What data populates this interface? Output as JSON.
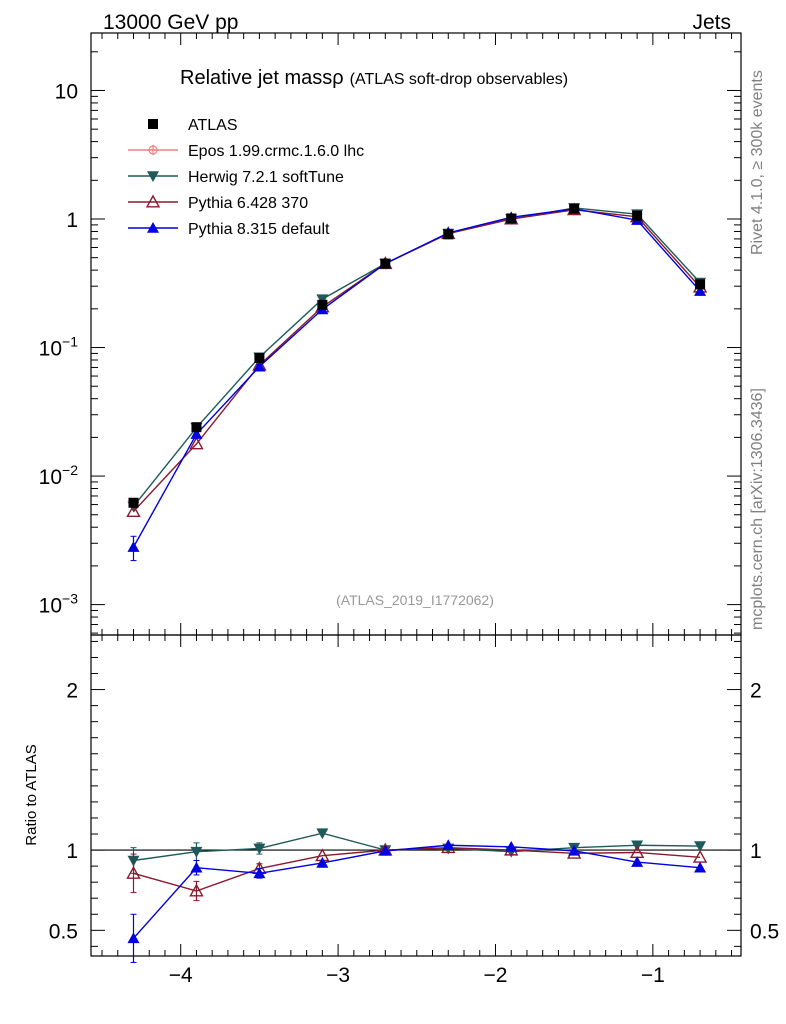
{
  "header": {
    "energy": "13000 GeV pp",
    "category": "Jets"
  },
  "side_labels": {
    "rivet": "Rivet 4.1.0, ≥ 300k events",
    "mcplots": "mcplots.cern.ch [arXiv:1306.3436]"
  },
  "chart_data": {
    "type": "line",
    "title": "Relative jet massρ",
    "subtitle": "(ATLAS soft-drop observables)",
    "analysis_id": "(ATLAS_2019_I1772062)",
    "x": [
      -4.3,
      -3.9,
      -3.5,
      -3.1,
      -2.7,
      -2.3,
      -1.9,
      -1.5,
      -1.1,
      -0.7
    ],
    "xlim": [
      -4.57,
      -0.44
    ],
    "xticks": [
      -4,
      -3,
      -2,
      -1
    ],
    "xtick_labels": [
      "−4",
      "−3",
      "−2",
      "−1"
    ],
    "main": {
      "yscale": "log",
      "ylim": [
        0.00058,
        28
      ],
      "yticks": [
        {
          "value": 0.001,
          "base": "10",
          "exp": "−3"
        },
        {
          "value": 0.01,
          "base": "10",
          "exp": "−2"
        },
        {
          "value": 0.1,
          "base": "10",
          "exp": "−1"
        },
        {
          "value": 1,
          "base": "1",
          "exp": ""
        },
        {
          "value": 10,
          "base": "10",
          "exp": ""
        }
      ]
    },
    "ratio": {
      "ylabel": "Ratio to ATLAS",
      "ylim": [
        0.34,
        2.34
      ],
      "yticks": [
        0.5,
        1,
        2
      ],
      "ytick_labels": [
        "0.5",
        "1",
        "2"
      ]
    },
    "reference": {
      "name": "ATLAS",
      "values": [
        0.0062,
        0.024,
        0.083,
        0.215,
        0.45,
        0.76,
        1.01,
        1.2,
        1.06,
        0.31
      ],
      "errors": [
        0.0004,
        0.0012,
        0.004,
        0.007,
        0.012,
        0.015,
        0.02,
        0.022,
        0.02,
        0.01
      ]
    },
    "series": [
      {
        "name": "Epos 1.99.crmc.1.6.0 lhc",
        "color": "#f08080",
        "marker": "cross",
        "values": null,
        "ratio": null,
        "ratio_err": null
      },
      {
        "name": "Herwig 7.2.1 softTune",
        "color": "#1e5a5a",
        "marker": "triangle-down",
        "values": [
          0.0058,
          0.0238,
          0.084,
          0.238,
          0.45,
          0.77,
          1.0,
          1.22,
          1.09,
          0.32
        ],
        "ratio": [
          0.935,
          0.99,
          1.01,
          1.105,
          1.0,
          1.01,
          0.99,
          1.015,
          1.03,
          1.025
        ],
        "ratio_err": [
          0.08,
          0.055,
          0.035,
          0.0,
          0.0,
          0.0,
          0.0,
          0.0,
          0.0,
          0.0
        ]
      },
      {
        "name": "Pythia 6.428 370",
        "color": "#8b1a2e",
        "marker": "triangle-open",
        "values": [
          0.0053,
          0.0178,
          0.073,
          0.207,
          0.45,
          0.77,
          1.0,
          1.18,
          1.04,
          0.295
        ],
        "ratio": [
          0.855,
          0.745,
          0.885,
          0.965,
          1.0,
          1.015,
          1.0,
          0.98,
          0.985,
          0.955
        ],
        "ratio_err": [
          0.12,
          0.06,
          0.03,
          0.0,
          0.0,
          0.0,
          0.0,
          0.0,
          0.0,
          0.0
        ]
      },
      {
        "name": "Pythia 8.315 default",
        "color": "#0000e0",
        "marker": "triangle-up",
        "values": [
          0.0028,
          0.0212,
          0.071,
          0.198,
          0.45,
          0.78,
          1.03,
          1.2,
          0.98,
          0.275
        ],
        "ratio": [
          0.45,
          0.89,
          0.855,
          0.92,
          0.995,
          1.03,
          1.02,
          0.995,
          0.925,
          0.89
        ],
        "ratio_err": [
          0.15,
          0.045,
          0.03,
          0.0,
          0.0,
          0.0,
          0.0,
          0.0,
          0.0,
          0.0
        ],
        "errors": [
          0.0006,
          0.0011,
          0.003,
          0.0,
          0.0,
          0.0,
          0.0,
          0.0,
          0.0,
          0.0
        ]
      }
    ]
  }
}
